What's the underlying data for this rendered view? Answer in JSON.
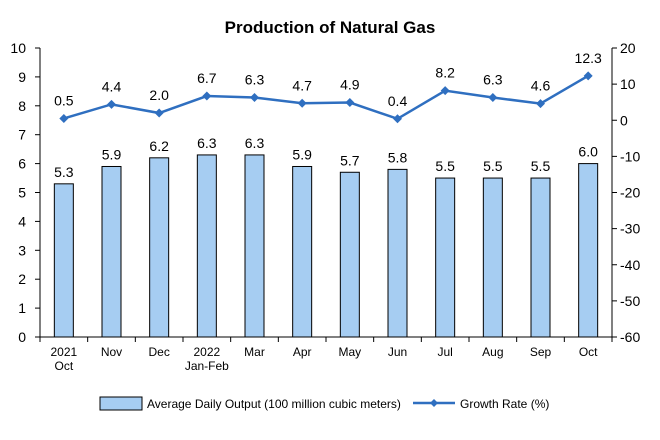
{
  "chart_data": {
    "type": "bar+line",
    "title": "Production of Natural Gas",
    "categories": [
      [
        "2021",
        "Oct"
      ],
      [
        "Nov"
      ],
      [
        "Dec"
      ],
      [
        "2022",
        "Jan-Feb"
      ],
      [
        "Mar"
      ],
      [
        "Apr"
      ],
      [
        "May"
      ],
      [
        "Jun"
      ],
      [
        "Jul"
      ],
      [
        "Aug"
      ],
      [
        "Sep"
      ],
      [
        "Oct"
      ]
    ],
    "series": [
      {
        "name": "Average Daily Output (100 million cubic meters)",
        "type": "bar",
        "axis": "left",
        "values": [
          5.3,
          5.9,
          6.2,
          6.3,
          6.3,
          5.9,
          5.7,
          5.8,
          5.5,
          5.5,
          5.5,
          6.0
        ],
        "labels": [
          "5.3",
          "5.9",
          "6.2",
          "6.3",
          "6.3",
          "5.9",
          "5.7",
          "5.8",
          "5.5",
          "5.5",
          "5.5",
          "6.0"
        ],
        "color": "#a6cdf2"
      },
      {
        "name": "Growth Rate (%)",
        "type": "line",
        "axis": "right",
        "values": [
          0.5,
          4.4,
          2.0,
          6.7,
          6.3,
          4.7,
          4.9,
          0.4,
          8.2,
          6.3,
          4.6,
          12.3
        ],
        "labels": [
          "0.5",
          "4.4",
          "2.0",
          "6.7",
          "6.3",
          "4.7",
          "4.9",
          "0.4",
          "8.2",
          "6.3",
          "4.6",
          "12.3"
        ],
        "color": "#2f6fc0"
      }
    ],
    "y_left": {
      "ylim": [
        0,
        10
      ],
      "ticks": [
        0,
        1,
        2,
        3,
        4,
        5,
        6,
        7,
        8,
        9,
        10
      ]
    },
    "y_right": {
      "ylim": [
        -60,
        20
      ],
      "ticks": [
        -60,
        -50,
        -40,
        -30,
        -20,
        -10,
        0,
        10,
        20
      ]
    },
    "grid": false,
    "legend_position": "bottom"
  }
}
